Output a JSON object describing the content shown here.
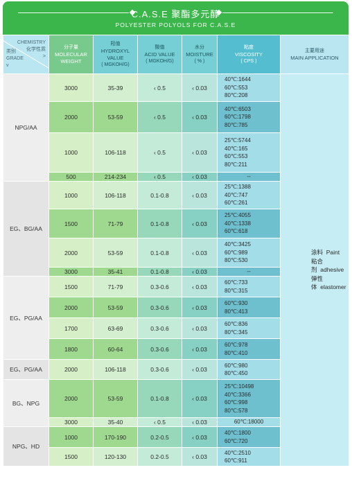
{
  "title": {
    "chinese": "C.A.S.E 聚酯多元醇",
    "english": "POLYESTER POLYOLS FOR C.A.S.E"
  },
  "header": {
    "chemistry_en": "CHEMISTRY",
    "chemistry_cn": "化学性质",
    "chemistry_arrow": ">",
    "grade_cn": "类别",
    "grade_en": "GRADE",
    "grade_arrow": "v",
    "mw_cn": "分子量",
    "mw_en1": "MOLECULAR",
    "mw_en2": "WEIGHT",
    "hv_cn": "羟值",
    "hv_en1": "HYDROXYL",
    "hv_en2": "VALUE",
    "hv_unit": "( MGKOH/G)",
    "av_cn": "酸值",
    "av_en": "ACID VALUE",
    "av_unit": "( MGKOH/G)",
    "mo_cn": "水分",
    "mo_en": "MOISTURE",
    "mo_unit": "( % )",
    "vi_cn": "粘度",
    "vi_en": "VISCOSITY",
    "vi_unit": "( CPS )",
    "app_cn": "主要用途",
    "app_en": "MAIN APPLICATION"
  },
  "groups": [
    {
      "grade": "NPG/AA"
    },
    {
      "grade": "EG、BG/AA"
    },
    {
      "grade": "EG、PG/AA"
    },
    {
      "grade": "EG、PG/AA"
    },
    {
      "grade": "BG、NPG"
    },
    {
      "grade": "NPG、HD"
    }
  ],
  "rows": [
    {
      "mw": "3000",
      "hv": "35-39",
      "av": "‹ 0.5",
      "mo": "‹ 0.03",
      "vis": [
        "40℃:1644",
        "60℃:553",
        "80℃:208"
      ]
    },
    {
      "mw": "2000",
      "hv": "53-59",
      "av": "‹ 0.5",
      "mo": "‹ 0.03",
      "vis": [
        "40℃:6503",
        "60℃:1798",
        "80℃:785"
      ]
    },
    {
      "mw": "1000",
      "hv": "106-118",
      "av": "‹ 0.5",
      "mo": "‹ 0.03",
      "vis": [
        "25℃:5744",
        "40℃:165",
        "60℃:553",
        "80℃:211"
      ]
    },
    {
      "mw": "500",
      "hv": "214-234",
      "av": "‹ 0.5",
      "mo": "‹ 0.03",
      "vis": [
        "--"
      ]
    },
    {
      "mw": "1000",
      "hv": "106-118",
      "av": "0.1-0.8",
      "mo": "‹ 0.03",
      "vis": [
        "25℃:1388",
        "40℃:747",
        "60℃:261"
      ]
    },
    {
      "mw": "1500",
      "hv": "71-79",
      "av": "0.1-0.8",
      "mo": "‹ 0.03",
      "vis": [
        "25℃:4055",
        "40℃:1338",
        "60℃:618"
      ]
    },
    {
      "mw": "2000",
      "hv": "53-59",
      "av": "0.1-0.8",
      "mo": "‹ 0.03",
      "vis": [
        "40℃:3425",
        "60℃:989",
        "80℃:530"
      ]
    },
    {
      "mw": "3000",
      "hv": "35-41",
      "av": "0.1-0.8",
      "mo": "‹ 0.03",
      "vis": [
        "--"
      ]
    },
    {
      "mw": "1500",
      "hv": "71-79",
      "av": "0.3-0.6",
      "mo": "‹ 0.03",
      "vis": [
        "60℃:733",
        "80℃:315"
      ]
    },
    {
      "mw": "2000",
      "hv": "53-59",
      "av": "0.3-0.6",
      "mo": "‹ 0.03",
      "vis": [
        "60℃:930",
        "80℃:413"
      ]
    },
    {
      "mw": "1700",
      "hv": "63-69",
      "av": "0.3-0.6",
      "mo": "‹ 0.03",
      "vis": [
        "60℃:836",
        "80℃:345"
      ]
    },
    {
      "mw": "1800",
      "hv": "60-64",
      "av": "0.3-0.6",
      "mo": "‹ 0.03",
      "vis": [
        "60℃:978",
        "80℃:410"
      ]
    },
    {
      "mw": "2000",
      "hv": "106-118",
      "av": "0.3-0.6",
      "mo": "‹ 0.03",
      "vis": [
        "60℃:980",
        "80℃:450"
      ]
    },
    {
      "mw": "2000",
      "hv": "53-59",
      "av": "0.1-0.8",
      "mo": "‹ 0.03",
      "vis": [
        "25℃:10498",
        "40℃:3366",
        "60℃:998",
        "80℃:578"
      ]
    },
    {
      "mw": "3000",
      "hv": "35-40",
      "av": "‹ 0.5",
      "mo": "‹ 0.03",
      "vis": [
        "60℃:18000"
      ]
    },
    {
      "mw": "1000",
      "hv": "170-190",
      "av": "0.2-0.5",
      "mo": "‹ 0.03",
      "vis": [
        "40℃:1800",
        "60℃:720"
      ]
    },
    {
      "mw": "1500",
      "hv": "120-130",
      "av": "0.2-0.5",
      "mo": "‹ 0.03",
      "vis": [
        "40℃:2510",
        "60℃:911"
      ]
    }
  ],
  "application": [
    {
      "cn": "涂料",
      "en": "Paint"
    },
    {
      "cn": "粘合剂",
      "en": "adhesive"
    },
    {
      "cn": "弹性体",
      "en": "elastomer"
    }
  ]
}
